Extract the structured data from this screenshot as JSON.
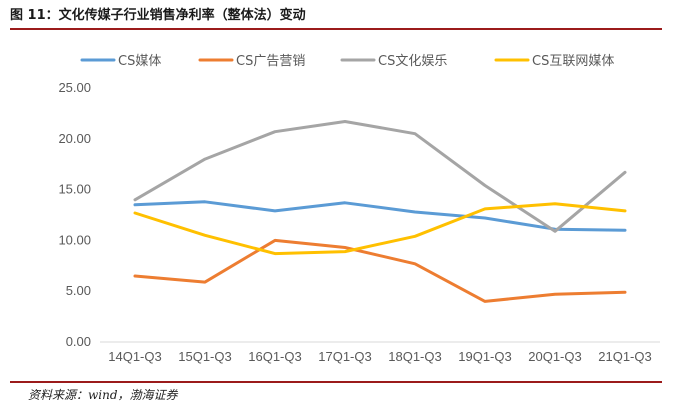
{
  "header": {
    "title": "图 11：文化传媒子行业销售净利率（整体法）变动"
  },
  "footer": {
    "source": "资料来源：wind，渤海证券"
  },
  "chart_data": {
    "type": "line",
    "title": "",
    "xlabel": "",
    "ylabel": "",
    "categories": [
      "14Q1-Q3",
      "15Q1-Q3",
      "16Q1-Q3",
      "17Q1-Q3",
      "18Q1-Q3",
      "19Q1-Q3",
      "20Q1-Q3",
      "21Q1-Q3"
    ],
    "yticks": [
      "0.00",
      "5.00",
      "10.00",
      "15.00",
      "20.00",
      "25.00"
    ],
    "ylim": [
      0,
      25
    ],
    "grid": false,
    "legend_position": "top",
    "series": [
      {
        "name": "CS媒体",
        "color": "#5B9BD5",
        "values": [
          13.5,
          13.8,
          12.9,
          13.7,
          12.8,
          12.2,
          11.1,
          11.0
        ]
      },
      {
        "name": "CS广告营销",
        "color": "#ED7D31",
        "values": [
          6.5,
          5.9,
          10.0,
          9.3,
          7.7,
          4.0,
          4.7,
          4.9
        ]
      },
      {
        "name": "CS文化娱乐",
        "color": "#A5A5A5",
        "values": [
          14.0,
          18.0,
          20.7,
          21.7,
          20.5,
          15.4,
          10.9,
          16.7
        ]
      },
      {
        "name": "CS互联网媒体",
        "color": "#FFC000",
        "values": [
          12.7,
          10.5,
          8.7,
          8.9,
          10.4,
          13.1,
          13.6,
          12.9
        ]
      }
    ]
  }
}
